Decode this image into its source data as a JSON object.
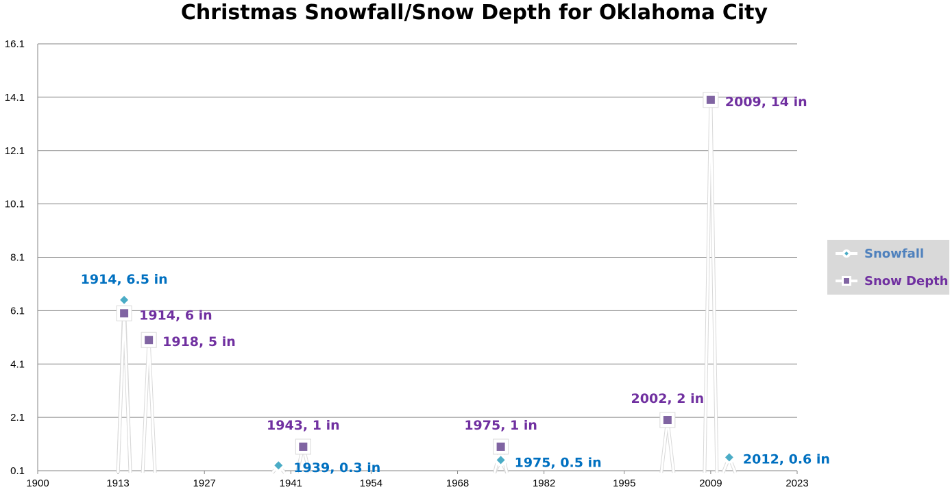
{
  "chart_data": {
    "type": "line",
    "title": "Christmas Snowfall/Snow Depth for Oklahoma City",
    "xlabel": "",
    "ylabel": "",
    "xlim": [
      1900,
      2023
    ],
    "ylim": [
      0.1,
      16.1
    ],
    "x_ticks": [
      "1900",
      "1913",
      "1927",
      "1941",
      "1954",
      "1968",
      "1982",
      "1995",
      "2009",
      "2023"
    ],
    "y_ticks": [
      "0.1",
      "2.1",
      "4.1",
      "6.1",
      "8.1",
      "10.1",
      "12.1",
      "14.1",
      "16.1"
    ],
    "grid": true,
    "legend_position": "right",
    "series": [
      {
        "name": "Snowfall",
        "color": "#4BACC6",
        "label_color": "#0070C0",
        "marker": "diamond",
        "points": [
          {
            "x": 1914,
            "y": 6.5,
            "label": "1914, 6.5 in"
          },
          {
            "x": 1939,
            "y": 0.3,
            "label": "1939, 0.3 in"
          },
          {
            "x": 1975,
            "y": 0.5,
            "label": "1975, 0.5 in"
          },
          {
            "x": 2012,
            "y": 0.6,
            "label": "2012, 0.6 in"
          }
        ]
      },
      {
        "name": "Snow Depth",
        "color": "#8064A2",
        "label_color": "#7030A0",
        "marker": "square",
        "points": [
          {
            "x": 1914,
            "y": 6,
            "label": "1914, 6 in"
          },
          {
            "x": 1918,
            "y": 5,
            "label": "1918, 5 in"
          },
          {
            "x": 1943,
            "y": 1,
            "label": "1943, 1 in"
          },
          {
            "x": 1975,
            "y": 1,
            "label": "1975, 1 in"
          },
          {
            "x": 2002,
            "y": 2,
            "label": "2002, 2 in"
          },
          {
            "x": 2009,
            "y": 14,
            "label": "2009, 14 in"
          }
        ]
      }
    ]
  }
}
